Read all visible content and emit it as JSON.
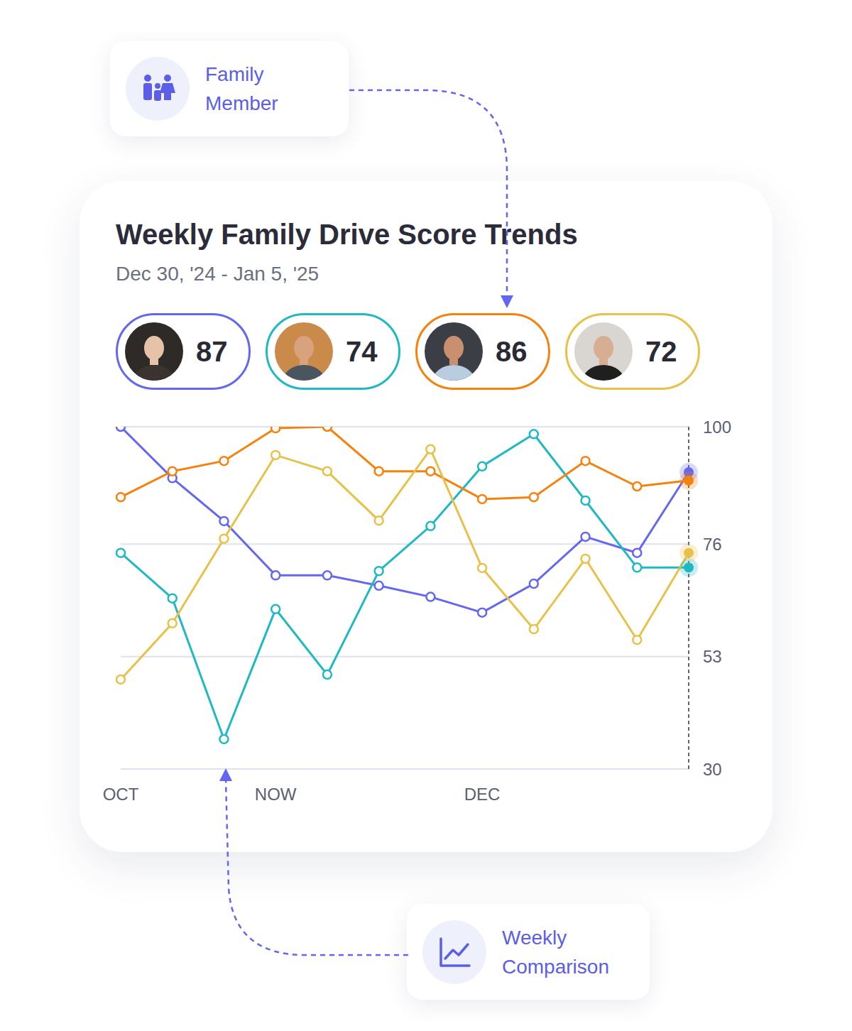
{
  "chart_data": {
    "type": "line",
    "title": "Weekly Family Drive Score Trends",
    "subtitle": "Dec 30, '24 - Jan 5, '25",
    "annotations": [
      "Family Member",
      "Weekly Comparison"
    ],
    "categories": [
      "OCT",
      null,
      null,
      "NOW",
      null,
      null,
      null,
      "DEC",
      null,
      null,
      null,
      null
    ],
    "series": [
      {
        "color": "#6467ef",
        "score": 87,
        "values": [
          100,
          89.5,
          80.7,
          69.6,
          69.6,
          67.5,
          65.2,
          62.0,
          67.9,
          77.5,
          74.2,
          90.7
        ]
      },
      {
        "color": "#1fb8c3",
        "score": 74,
        "values": [
          74.2,
          64.9,
          36.1,
          62.7,
          49.3,
          70.5,
          79.7,
          91.9,
          98.5,
          84.9,
          71.2,
          71.2
        ]
      },
      {
        "color": "#f5820d",
        "score": 86,
        "values": [
          85.6,
          90.9,
          93.0,
          99.7,
          100,
          90.9,
          90.9,
          85.2,
          85.6,
          93.0,
          87.8,
          89.0
        ]
      },
      {
        "color": "#e8c14a",
        "score": 72,
        "values": [
          48.3,
          59.8,
          77.1,
          94.2,
          90.9,
          80.8,
          95.4,
          71.1,
          58.6,
          73.0,
          56.4,
          74.2
        ]
      }
    ],
    "ylim": [
      30,
      100
    ],
    "yticks": [
      30,
      53,
      76,
      100
    ],
    "grid": true,
    "marker": "circle"
  }
}
